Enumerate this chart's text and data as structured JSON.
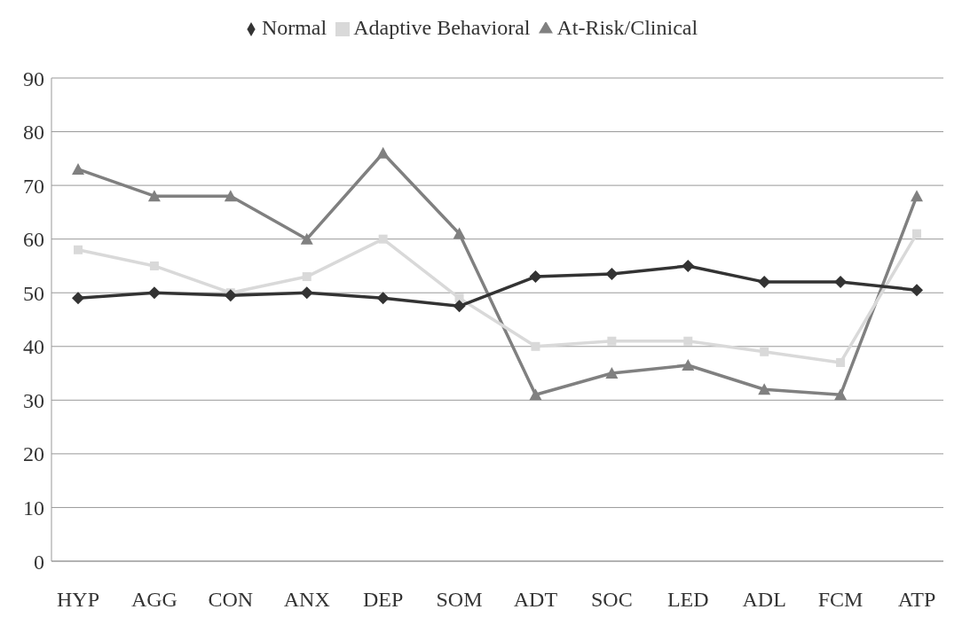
{
  "chart_data": {
    "type": "line",
    "categories": [
      "HYP",
      "AGG",
      "CON",
      "ANX",
      "DEP",
      "SOM",
      "ADT",
      "SOC",
      "LED",
      "ADL",
      "FCM",
      "ATP"
    ],
    "series": [
      {
        "name": "Normal",
        "color": "#333333",
        "marker": "diamond",
        "values": [
          49,
          50,
          49.5,
          50,
          49,
          47.5,
          53,
          53.5,
          55,
          52,
          52,
          50.5
        ]
      },
      {
        "name": "Adaptive Behavioral",
        "color": "#d9d9d9",
        "marker": "square",
        "values": [
          58,
          55,
          50,
          53,
          60,
          49,
          40,
          41,
          41,
          39,
          37,
          61
        ]
      },
      {
        "name": "At-Risk/Clinical",
        "color": "#808080",
        "marker": "triangle",
        "values": [
          73,
          68,
          68,
          60,
          76,
          61,
          31,
          35,
          36.5,
          32,
          31,
          68
        ]
      }
    ],
    "ylim": [
      0,
      90
    ],
    "yticks": [
      0,
      10,
      20,
      30,
      40,
      50,
      60,
      70,
      80,
      90
    ],
    "grid": "y",
    "legend": "top"
  }
}
